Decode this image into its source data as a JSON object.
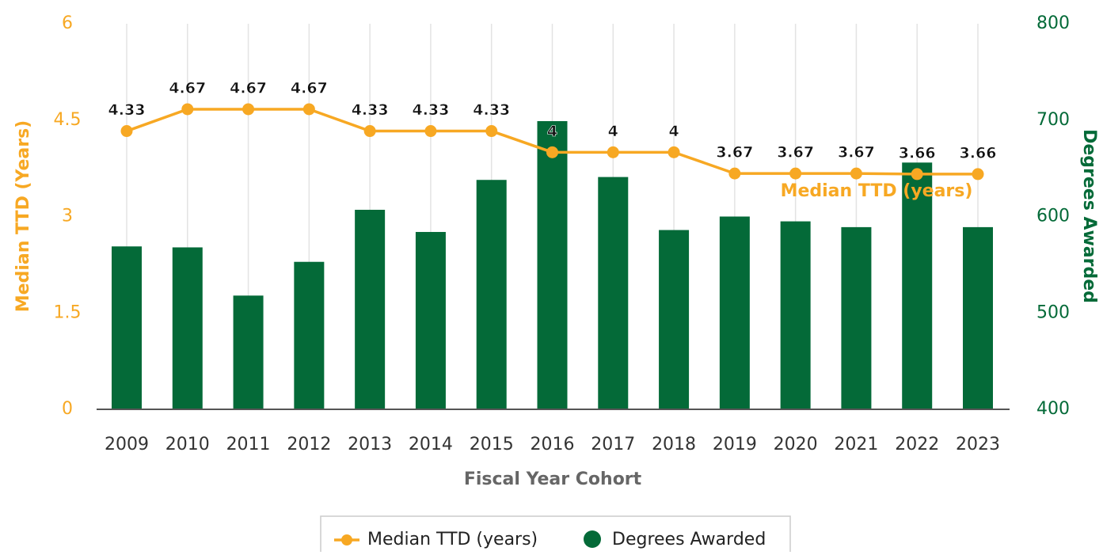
{
  "chart_data": {
    "type": "bar-line",
    "x_label": "Fiscal Year Cohort",
    "y_label": "Median TTD (Years)",
    "y2_label": "Degrees Awarded",
    "annotation": "Median TTD (years)",
    "categories": [
      "2009",
      "2010",
      "2011",
      "2012",
      "2013",
      "2014",
      "2015",
      "2016",
      "2017",
      "2018",
      "2019",
      "2020",
      "2021",
      "2022",
      "2023"
    ],
    "series": [
      {
        "name": "Median TTD (years)",
        "type": "line",
        "axis": "y",
        "color": "#f7a823",
        "values": [
          4.33,
          4.67,
          4.67,
          4.67,
          4.33,
          4.33,
          4.33,
          4,
          4,
          4,
          3.67,
          3.67,
          3.67,
          3.66,
          3.66
        ]
      },
      {
        "name": "Degrees Awarded",
        "type": "bar",
        "axis": "y2",
        "color": "#046a38",
        "values": [
          569,
          568,
          518,
          553,
          607,
          584,
          638,
          699,
          641,
          586,
          600,
          595,
          589,
          656,
          589
        ]
      }
    ],
    "ylim": [
      0,
      6
    ],
    "yticks": [
      0,
      1.5,
      3,
      4.5,
      6
    ],
    "y2lim": [
      400,
      800
    ],
    "y2ticks": [
      400,
      500,
      600,
      700,
      800
    ],
    "legend": "bottom"
  }
}
